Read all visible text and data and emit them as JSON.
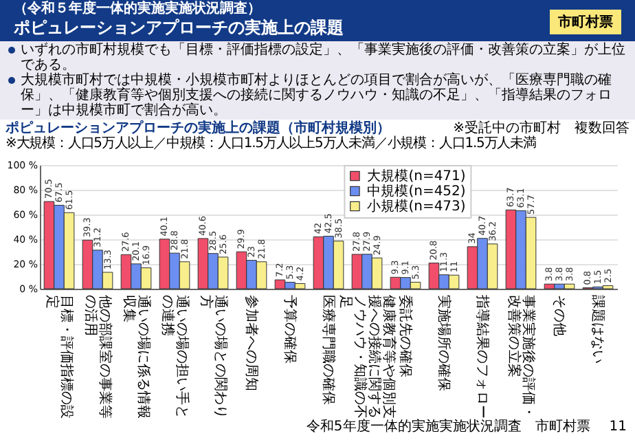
{
  "chart_data": {
    "type": "bar",
    "title": "ポピュレーションアプローチの実施上の課題",
    "subtitle": "（令和５年度一体的実施実施状況調査）",
    "annotations": [
      "市町村票",
      "いずれの市町村規模でも「目標・評価指標の設定」、「事業実施後の評価・改善策の立案」が上位である。",
      "大規模市町村では中規模・小規模市町村よりほとんどの項目で割合が高いが、「医療専門職の確保」、「健康教育等や個別支援への接続に関するノウハウ・知識の不足」、「指導結果のフォロー」は中規模市町で割合が高い。",
      "ポピュレーションアプローチの実施上の課題（市町村規模別）",
      "※大規模：人口5万人以上／中規模：人口1.5万人以上5万人未満／小規模：人口1.5万人未満",
      "※受託中の市町村",
      "複数回答",
      "令和5年度一体的実施実施状況調査　市町村票",
      "11"
    ],
    "categories": [
      "目標・評価指標の設定",
      "他の部課室の事業等の活用",
      "通いの場に係る情報収集",
      "通いの場の担い手との連携",
      "通いの場との関わり方",
      "参加者への周知",
      "予算の確保",
      "医療専門職の確保",
      "健康教育等や個別支援への接続に関するノウハウ・知識の不足",
      "委託先の確保",
      "実施場所の確保",
      "指導結果のフォロー",
      "事業実施後の評価・改善策の立案",
      "その他",
      "課題はない"
    ],
    "series": [
      {
        "name": "大規模(n=471)",
        "color": "#f04e6a",
        "values": [
          70.5,
          39.3,
          27.6,
          40.1,
          40.6,
          29.9,
          7.2,
          42,
          27.8,
          9.3,
          20.8,
          34,
          63.7,
          3.8,
          0.8
        ]
      },
      {
        "name": "中規模(n=452)",
        "color": "#6b8ef0",
        "values": [
          67.5,
          31.2,
          20.1,
          28.8,
          28.5,
          23,
          5.3,
          42.5,
          27.9,
          9.1,
          11.3,
          40.7,
          63.1,
          3.8,
          1.5
        ]
      },
      {
        "name": "小規模(n=473)",
        "color": "#f8ef8c",
        "values": [
          61.5,
          13.3,
          16.9,
          21.8,
          25.6,
          21.8,
          4.2,
          38.5,
          24.9,
          5.3,
          11,
          36.2,
          57.7,
          3.8,
          2.5
        ]
      }
    ],
    "ylim": [
      0,
      100
    ],
    "yticks": [
      {
        "value": 0,
        "label": "0 %"
      },
      {
        "value": 20,
        "label": "20 %"
      },
      {
        "value": 40,
        "label": "40 %"
      },
      {
        "value": 60,
        "label": "60 %"
      },
      {
        "value": 80,
        "label": "80 %"
      },
      {
        "value": 100,
        "label": "100 %"
      }
    ],
    "grid": "y",
    "legend": "top right",
    "data_labels": true
  }
}
